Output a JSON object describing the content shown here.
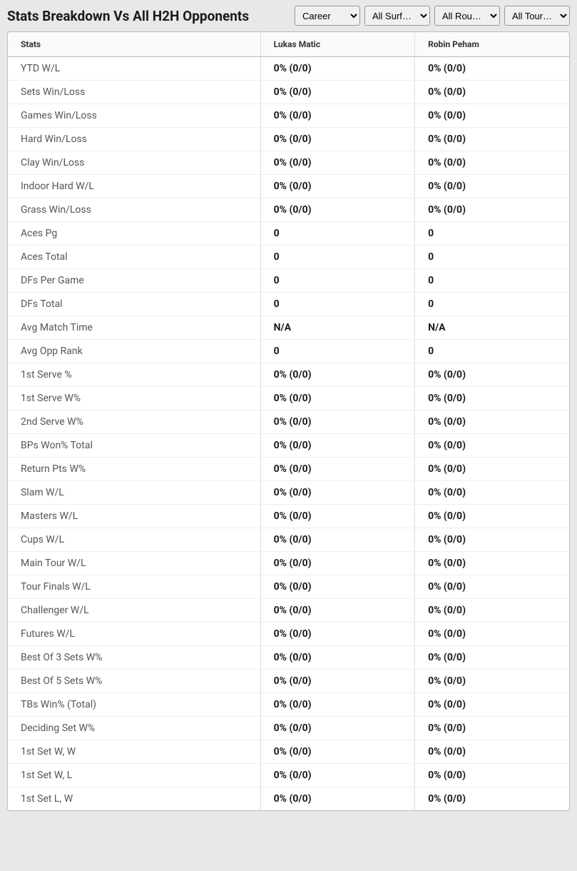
{
  "header": {
    "title": "Stats Breakdown Vs All H2H Opponents"
  },
  "filters": {
    "career": {
      "selected": "Career",
      "options": [
        "Career"
      ]
    },
    "surface": {
      "selected": "All Surf…",
      "options": [
        "All Surf…"
      ]
    },
    "rounds": {
      "selected": "All Rou…",
      "options": [
        "All Rou…"
      ]
    },
    "tournament": {
      "selected": "All Tour…",
      "options": [
        "All Tour…"
      ]
    }
  },
  "table": {
    "columns": [
      "Stats",
      "Lukas Matic",
      "Robin Peham"
    ],
    "rows": [
      {
        "stat": "YTD W/L",
        "p1": "0% (0/0)",
        "p2": "0% (0/0)"
      },
      {
        "stat": "Sets Win/Loss",
        "p1": "0% (0/0)",
        "p2": "0% (0/0)"
      },
      {
        "stat": "Games Win/Loss",
        "p1": "0% (0/0)",
        "p2": "0% (0/0)"
      },
      {
        "stat": "Hard Win/Loss",
        "p1": "0% (0/0)",
        "p2": "0% (0/0)"
      },
      {
        "stat": "Clay Win/Loss",
        "p1": "0% (0/0)",
        "p2": "0% (0/0)"
      },
      {
        "stat": "Indoor Hard W/L",
        "p1": "0% (0/0)",
        "p2": "0% (0/0)"
      },
      {
        "stat": "Grass Win/Loss",
        "p1": "0% (0/0)",
        "p2": "0% (0/0)"
      },
      {
        "stat": "Aces Pg",
        "p1": "0",
        "p2": "0"
      },
      {
        "stat": "Aces Total",
        "p1": "0",
        "p2": "0"
      },
      {
        "stat": "DFs Per Game",
        "p1": "0",
        "p2": "0"
      },
      {
        "stat": "DFs Total",
        "p1": "0",
        "p2": "0"
      },
      {
        "stat": "Avg Match Time",
        "p1": "N/A",
        "p2": "N/A"
      },
      {
        "stat": "Avg Opp Rank",
        "p1": "0",
        "p2": "0"
      },
      {
        "stat": "1st Serve %",
        "p1": "0% (0/0)",
        "p2": "0% (0/0)"
      },
      {
        "stat": "1st Serve W%",
        "p1": "0% (0/0)",
        "p2": "0% (0/0)"
      },
      {
        "stat": "2nd Serve W%",
        "p1": "0% (0/0)",
        "p2": "0% (0/0)"
      },
      {
        "stat": "BPs Won% Total",
        "p1": "0% (0/0)",
        "p2": "0% (0/0)"
      },
      {
        "stat": "Return Pts W%",
        "p1": "0% (0/0)",
        "p2": "0% (0/0)"
      },
      {
        "stat": "Slam W/L",
        "p1": "0% (0/0)",
        "p2": "0% (0/0)"
      },
      {
        "stat": "Masters W/L",
        "p1": "0% (0/0)",
        "p2": "0% (0/0)"
      },
      {
        "stat": "Cups W/L",
        "p1": "0% (0/0)",
        "p2": "0% (0/0)"
      },
      {
        "stat": "Main Tour W/L",
        "p1": "0% (0/0)",
        "p2": "0% (0/0)"
      },
      {
        "stat": "Tour Finals W/L",
        "p1": "0% (0/0)",
        "p2": "0% (0/0)"
      },
      {
        "stat": "Challenger W/L",
        "p1": "0% (0/0)",
        "p2": "0% (0/0)"
      },
      {
        "stat": "Futures W/L",
        "p1": "0% (0/0)",
        "p2": "0% (0/0)"
      },
      {
        "stat": "Best Of 3 Sets W%",
        "p1": "0% (0/0)",
        "p2": "0% (0/0)"
      },
      {
        "stat": "Best Of 5 Sets W%",
        "p1": "0% (0/0)",
        "p2": "0% (0/0)"
      },
      {
        "stat": "TBs Win% (Total)",
        "p1": "0% (0/0)",
        "p2": "0% (0/0)"
      },
      {
        "stat": "Deciding Set W%",
        "p1": "0% (0/0)",
        "p2": "0% (0/0)"
      },
      {
        "stat": "1st Set W, W",
        "p1": "0% (0/0)",
        "p2": "0% (0/0)"
      },
      {
        "stat": "1st Set W, L",
        "p1": "0% (0/0)",
        "p2": "0% (0/0)"
      },
      {
        "stat": "1st Set L, W",
        "p1": "0% (0/0)",
        "p2": "0% (0/0)"
      }
    ]
  }
}
